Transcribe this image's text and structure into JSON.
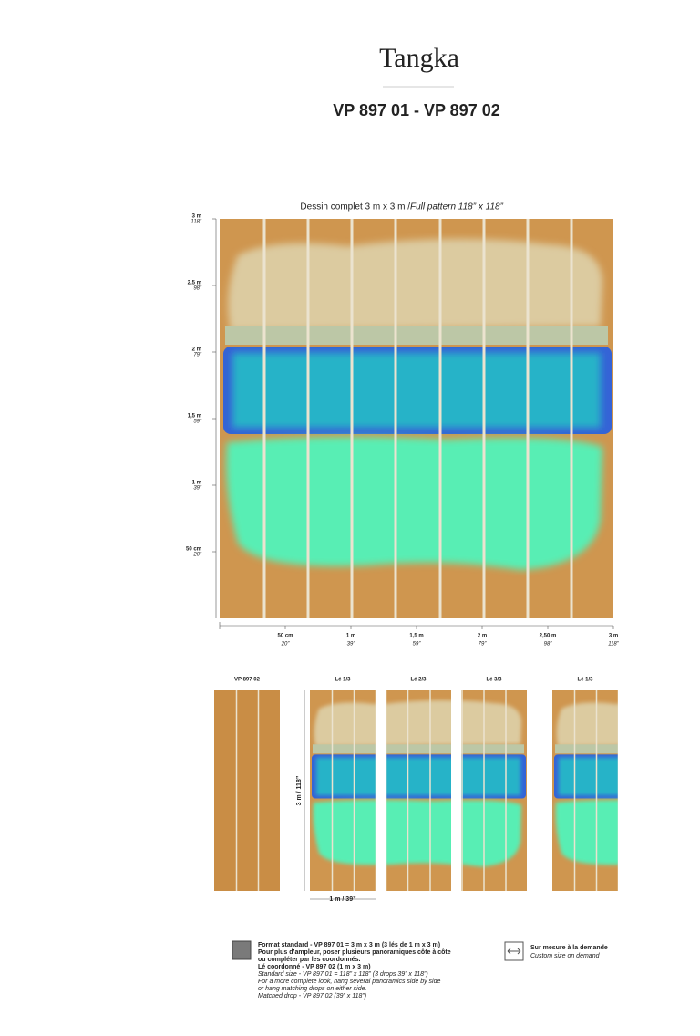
{
  "header": {
    "title": "Tangka",
    "subtitle": "VP 897 01 - VP 897 02"
  },
  "pattern": {
    "caption": "Dessin complet 3 m x 3 m / ",
    "caption_en": "Full pattern 118” x 118”",
    "vertical_scale": [
      {
        "metric": "3 m",
        "imperial": "118”"
      },
      {
        "metric": "2,5 m",
        "imperial": "98”"
      },
      {
        "metric": "2 m",
        "imperial": "79”"
      },
      {
        "metric": "1,5 m",
        "imperial": "59”"
      },
      {
        "metric": "1 m",
        "imperial": "39”"
      },
      {
        "metric": "50 cm",
        "imperial": "20”"
      }
    ],
    "horizontal_scale": [
      {
        "metric": "50 cm",
        "imperial": "20”"
      },
      {
        "metric": "1 m",
        "imperial": "39”"
      },
      {
        "metric": "1,5 m",
        "imperial": "59”"
      },
      {
        "metric": "2 m",
        "imperial": "79”"
      },
      {
        "metric": "2,50 m",
        "imperial": "98”"
      },
      {
        "metric": "3 m",
        "imperial": "118”"
      }
    ]
  },
  "panels": {
    "labels": [
      "VP 897 02",
      "Lé 1/3",
      "Lé 2/3",
      "Lé 3/3",
      "Lé 1/3"
    ],
    "height": "3 m / 118”",
    "width": "1 m / 39”"
  },
  "legend": {
    "standard": {
      "lines_fr": [
        "Format standard - VP 897 01 = 3 m x 3 m (3 lés de 1 m x 3 m)",
        "Pour plus d’ampleur, poser plusieurs panoramiques côte à côte",
        "ou compléter par les coordonnés.",
        "Lé coordonné - VP 897 02 (1 m x 3 m)"
      ],
      "lines_en": [
        "Standard size - VP 897 01 = 118” x 118” (3 drops 39” x 118”)",
        "For a more complete look, hang several panoramics side by side",
        "or hang matching drops on either side.",
        "Matched drop - VP 897 02 (39” x 118”)"
      ]
    },
    "custom": {
      "fr": "Sur mesure à la demande",
      "en": "Custom size on demand"
    }
  }
}
